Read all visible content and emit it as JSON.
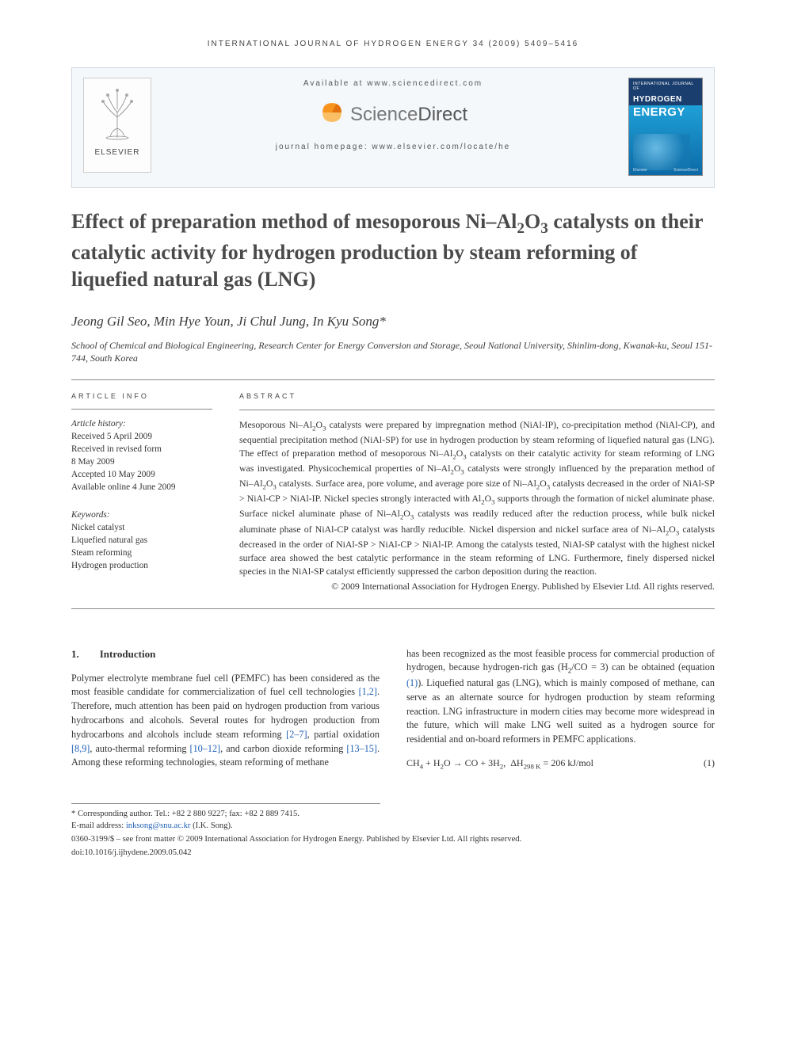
{
  "running_head": "INTERNATIONAL JOURNAL OF HYDROGEN ENERGY 34 (2009) 5409–5416",
  "header": {
    "available_at": "Available at www.sciencedirect.com",
    "publisher_brand": "ScienceDirect",
    "homepage": "journal homepage: www.elsevier.com/locate/he",
    "elsevier_label": "ELSEVIER",
    "cover_small": "INTERNATIONAL JOURNAL OF",
    "cover_title1": "HYDROGEN",
    "cover_title2": "ENERGY",
    "cover_footer_left": "Elsevier",
    "cover_footer_right": "ScienceDirect"
  },
  "title_html": "Effect of preparation method of mesoporous Ni–Al<sub>2</sub>O<sub>3</sub> catalysts on their catalytic activity for hydrogen production by steam reforming of liquefied natural gas (LNG)",
  "authors": "Jeong Gil Seo, Min Hye Youn, Ji Chul Jung, In Kyu Song*",
  "affiliation": "School of Chemical and Biological Engineering, Research Center for Energy Conversion and Storage, Seoul National University, Shinlim-dong, Kwanak-ku, Seoul 151-744, South Korea",
  "article_info": {
    "heading": "ARTICLE INFO",
    "history_label": "Article history:",
    "received": "Received 5 April 2009",
    "revised_label": "Received in revised form",
    "revised_date": "8 May 2009",
    "accepted": "Accepted 10 May 2009",
    "online": "Available online 4 June 2009",
    "keywords_label": "Keywords:",
    "keywords": [
      "Nickel catalyst",
      "Liquefied natural gas",
      "Steam reforming",
      "Hydrogen production"
    ]
  },
  "abstract": {
    "heading": "ABSTRACT",
    "body_html": "Mesoporous Ni–Al<sub>2</sub>O<sub>3</sub> catalysts were prepared by impregnation method (NiAl-IP), co-precipitation method (NiAl-CP), and sequential precipitation method (NiAl-SP) for use in hydrogen production by steam reforming of liquefied natural gas (LNG). The effect of preparation method of mesoporous Ni–Al<sub>2</sub>O<sub>3</sub> catalysts on their catalytic activity for steam reforming of LNG was investigated. Physicochemical properties of Ni–Al<sub>2</sub>O<sub>3</sub> catalysts were strongly influenced by the preparation method of Ni–Al<sub>2</sub>O<sub>3</sub> catalysts. Surface area, pore volume, and average pore size of Ni–Al<sub>2</sub>O<sub>3</sub> catalysts decreased in the order of NiAl-SP &gt; NiAl-CP &gt; NiAl-IP. Nickel species strongly interacted with Al<sub>2</sub>O<sub>3</sub> supports through the formation of nickel aluminate phase. Surface nickel aluminate phase of Ni–Al<sub>2</sub>O<sub>3</sub> catalysts was readily reduced after the reduction process, while bulk nickel aluminate phase of NiAl-CP catalyst was hardly reducible. Nickel dispersion and nickel surface area of Ni–Al<sub>2</sub>O<sub>3</sub> catalysts decreased in the order of NiAl-SP &gt; NiAl-CP &gt; NiAl-IP. Among the catalysts tested, NiAl-SP catalyst with the highest nickel surface area showed the best catalytic performance in the steam reforming of LNG. Furthermore, finely dispersed nickel species in the NiAl-SP catalyst efficiently suppressed the carbon deposition during the reaction.",
    "copyright": "© 2009 International Association for Hydrogen Energy. Published by Elsevier Ltd. All rights reserved."
  },
  "section1": {
    "num": "1.",
    "title": "Introduction"
  },
  "intro_col1_html": "Polymer electrolyte membrane fuel cell (PEMFC) has been considered as the most feasible candidate for commercialization of fuel cell technologies <span class=\"ref-link\">[1,2]</span>. Therefore, much attention has been paid on hydrogen production from various hydrocarbons and alcohols. Several routes for hydrogen production from hydrocarbons and alcohols include steam reforming <span class=\"ref-link\">[2–7]</span>, partial oxidation <span class=\"ref-link\">[8,9]</span>, auto-thermal reforming <span class=\"ref-link\">[10–12]</span>, and carbon dioxide reforming <span class=\"ref-link\">[13–15]</span>. Among these reforming technologies, steam reforming of methane",
  "intro_col2_html": "has been recognized as the most feasible process for commercial production of hydrogen, because hydrogen-rich gas (H<sub>2</sub>/CO = 3) can be obtained (equation <span class=\"ref-link\">(1)</span>). Liquefied natural gas (LNG), which is mainly composed of methane, can serve as an alternate source for hydrogen production by steam reforming reaction. LNG infrastructure in modern cities may become more widespread in the future, which will make LNG well suited as a hydrogen source for residential and on-board reformers in PEMFC applications.",
  "equation": {
    "expr_html": "CH<sub>4</sub> + H<sub>2</sub>O → CO + 3H<sub>2</sub>,&nbsp;&nbsp;ΔH<sub>298 K</sub> = 206 kJ/mol",
    "num": "(1)"
  },
  "footnotes": {
    "corresponding": "* Corresponding author. Tel.: +82 2 880 9227; fax: +82 2 889 7415.",
    "email_label": "E-mail address:",
    "email": "inksong@snu.ac.kr",
    "email_tail": " (I.K. Song)."
  },
  "footer": {
    "line1": "0360-3199/$ – see front matter © 2009 International Association for Hydrogen Energy. Published by Elsevier Ltd. All rights reserved.",
    "line2": "doi:10.1016/j.ijhydene.2009.05.042"
  },
  "colors": {
    "link": "#1e5fb4",
    "header_bg": "#f4f8fb",
    "sd_orange": "#f7941e",
    "cover_top": "#1a3e6e",
    "cover_grad": "#1fa0d8"
  }
}
